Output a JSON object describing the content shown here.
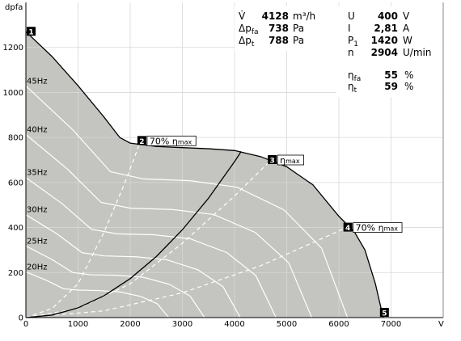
{
  "chart_data": {
    "type": "line",
    "y_label": "dpfa",
    "x_label": "V",
    "xlim": [
      0,
      8000
    ],
    "ylim": [
      0,
      1400
    ],
    "xticks": [
      0,
      1000,
      2000,
      3000,
      4000,
      5000,
      6000,
      7000
    ],
    "yticks": [
      0,
      200,
      400,
      600,
      800,
      1000,
      1200
    ],
    "grid": true,
    "fan_curve": {
      "color": "#000000",
      "fill": "#c4c4c0",
      "x": [
        0,
        500,
        1000,
        1500,
        1800,
        2000,
        2500,
        3000,
        3500,
        4000,
        4500,
        5000,
        5500,
        6000,
        6300,
        6500,
        6700,
        6850
      ],
      "y": [
        1270,
        1160,
        1030,
        890,
        800,
        775,
        760,
        755,
        750,
        742,
        715,
        670,
        590,
        450,
        380,
        300,
        150,
        0
      ]
    },
    "speed_curves": [
      {
        "name": "45Hz",
        "color": "#ffffff",
        "x": [
          0,
          900,
          1620,
          2250,
          3150,
          4050,
          4950,
          5670,
          6165
        ],
        "y": [
          1029,
          834,
          648,
          616,
          608,
          579,
          478,
          308,
          0
        ]
      },
      {
        "name": "40Hz",
        "color": "#ffffff",
        "x": [
          0,
          800,
          1440,
          2000,
          2800,
          3600,
          4400,
          5040,
          5480
        ],
        "y": [
          813,
          659,
          512,
          486,
          480,
          458,
          378,
          243,
          0
        ]
      },
      {
        "name": "35Hz",
        "color": "#ffffff",
        "x": [
          0,
          700,
          1260,
          1750,
          2450,
          3150,
          3850,
          4410,
          4795
        ],
        "y": [
          622,
          505,
          392,
          372,
          368,
          350,
          289,
          186,
          0
        ]
      },
      {
        "name": "30Hz",
        "color": "#ffffff",
        "x": [
          0,
          600,
          1080,
          1500,
          2100,
          2700,
          3300,
          3780,
          4110
        ],
        "y": [
          457,
          371,
          288,
          274,
          270,
          257,
          212,
          137,
          0
        ]
      },
      {
        "name": "25Hz",
        "color": "#ffffff",
        "x": [
          0,
          500,
          900,
          1250,
          1750,
          2250,
          2750,
          3150,
          3425
        ],
        "y": [
          318,
          258,
          200,
          190,
          188,
          179,
          148,
          95,
          0
        ]
      },
      {
        "name": "20Hz",
        "color": "#ffffff",
        "x": [
          0,
          400,
          720,
          1000,
          1400,
          1800,
          2200,
          2520,
          2740
        ],
        "y": [
          203,
          165,
          128,
          122,
          120,
          114,
          94,
          61,
          0
        ]
      }
    ],
    "system_curve": {
      "color": "#000000",
      "x": [
        0,
        500,
        1000,
        1500,
        2000,
        2500,
        3000,
        3500,
        4000,
        4128
      ],
      "y": [
        0,
        11,
        43,
        97,
        173,
        271,
        390,
        530,
        693,
        738
      ]
    },
    "efficiency_lines": {
      "color": "#ffffff",
      "lines": [
        {
          "x": [
            0,
            500,
            1000,
            1500,
            1900,
            2200
          ],
          "y": [
            0,
            40,
            150,
            380,
            600,
            785
          ]
        },
        {
          "x": [
            0,
            1000,
            2000,
            3000,
            4000,
            4700
          ],
          "y": [
            0,
            40,
            150,
            330,
            540,
            700
          ]
        },
        {
          "x": [
            0,
            1500,
            3000,
            4500,
            6150
          ],
          "y": [
            0,
            30,
            110,
            230,
            400
          ]
        }
      ]
    },
    "markers": [
      {
        "label": "1",
        "x": 0,
        "y": 1270
      },
      {
        "label": "2",
        "x": 2200,
        "y": 785,
        "note": "70% η",
        "note_sub": "max"
      },
      {
        "label": "3",
        "x": 4700,
        "y": 700,
        "note": "η",
        "note_sub": "max"
      },
      {
        "label": "4",
        "x": 6150,
        "y": 400,
        "note": "70% η",
        "note_sub": "max"
      },
      {
        "label": "5",
        "x": 6850,
        "y": 0
      }
    ]
  },
  "operating_point": {
    "left": [
      {
        "symbol": "V̇",
        "value": 4128,
        "unit": "m³/h"
      },
      {
        "symbol": "Δp",
        "sub": "fa",
        "value": 738,
        "unit": "Pa"
      },
      {
        "symbol": "Δp",
        "sub": "t",
        "value": 788,
        "unit": "Pa"
      }
    ],
    "right": [
      {
        "symbol": "U",
        "value": 400,
        "unit": "V"
      },
      {
        "symbol": "I",
        "value": "2,81",
        "unit": "A"
      },
      {
        "symbol": "P",
        "sub": "1",
        "value": 1420,
        "unit": "W"
      },
      {
        "symbol": "n",
        "value": 2904,
        "unit": "U/min"
      }
    ],
    "efficiency": [
      {
        "symbol": "η",
        "sub": "fa",
        "value": 55,
        "unit": "%"
      },
      {
        "symbol": "η",
        "sub": "t",
        "value": 59,
        "unit": "%"
      }
    ]
  }
}
